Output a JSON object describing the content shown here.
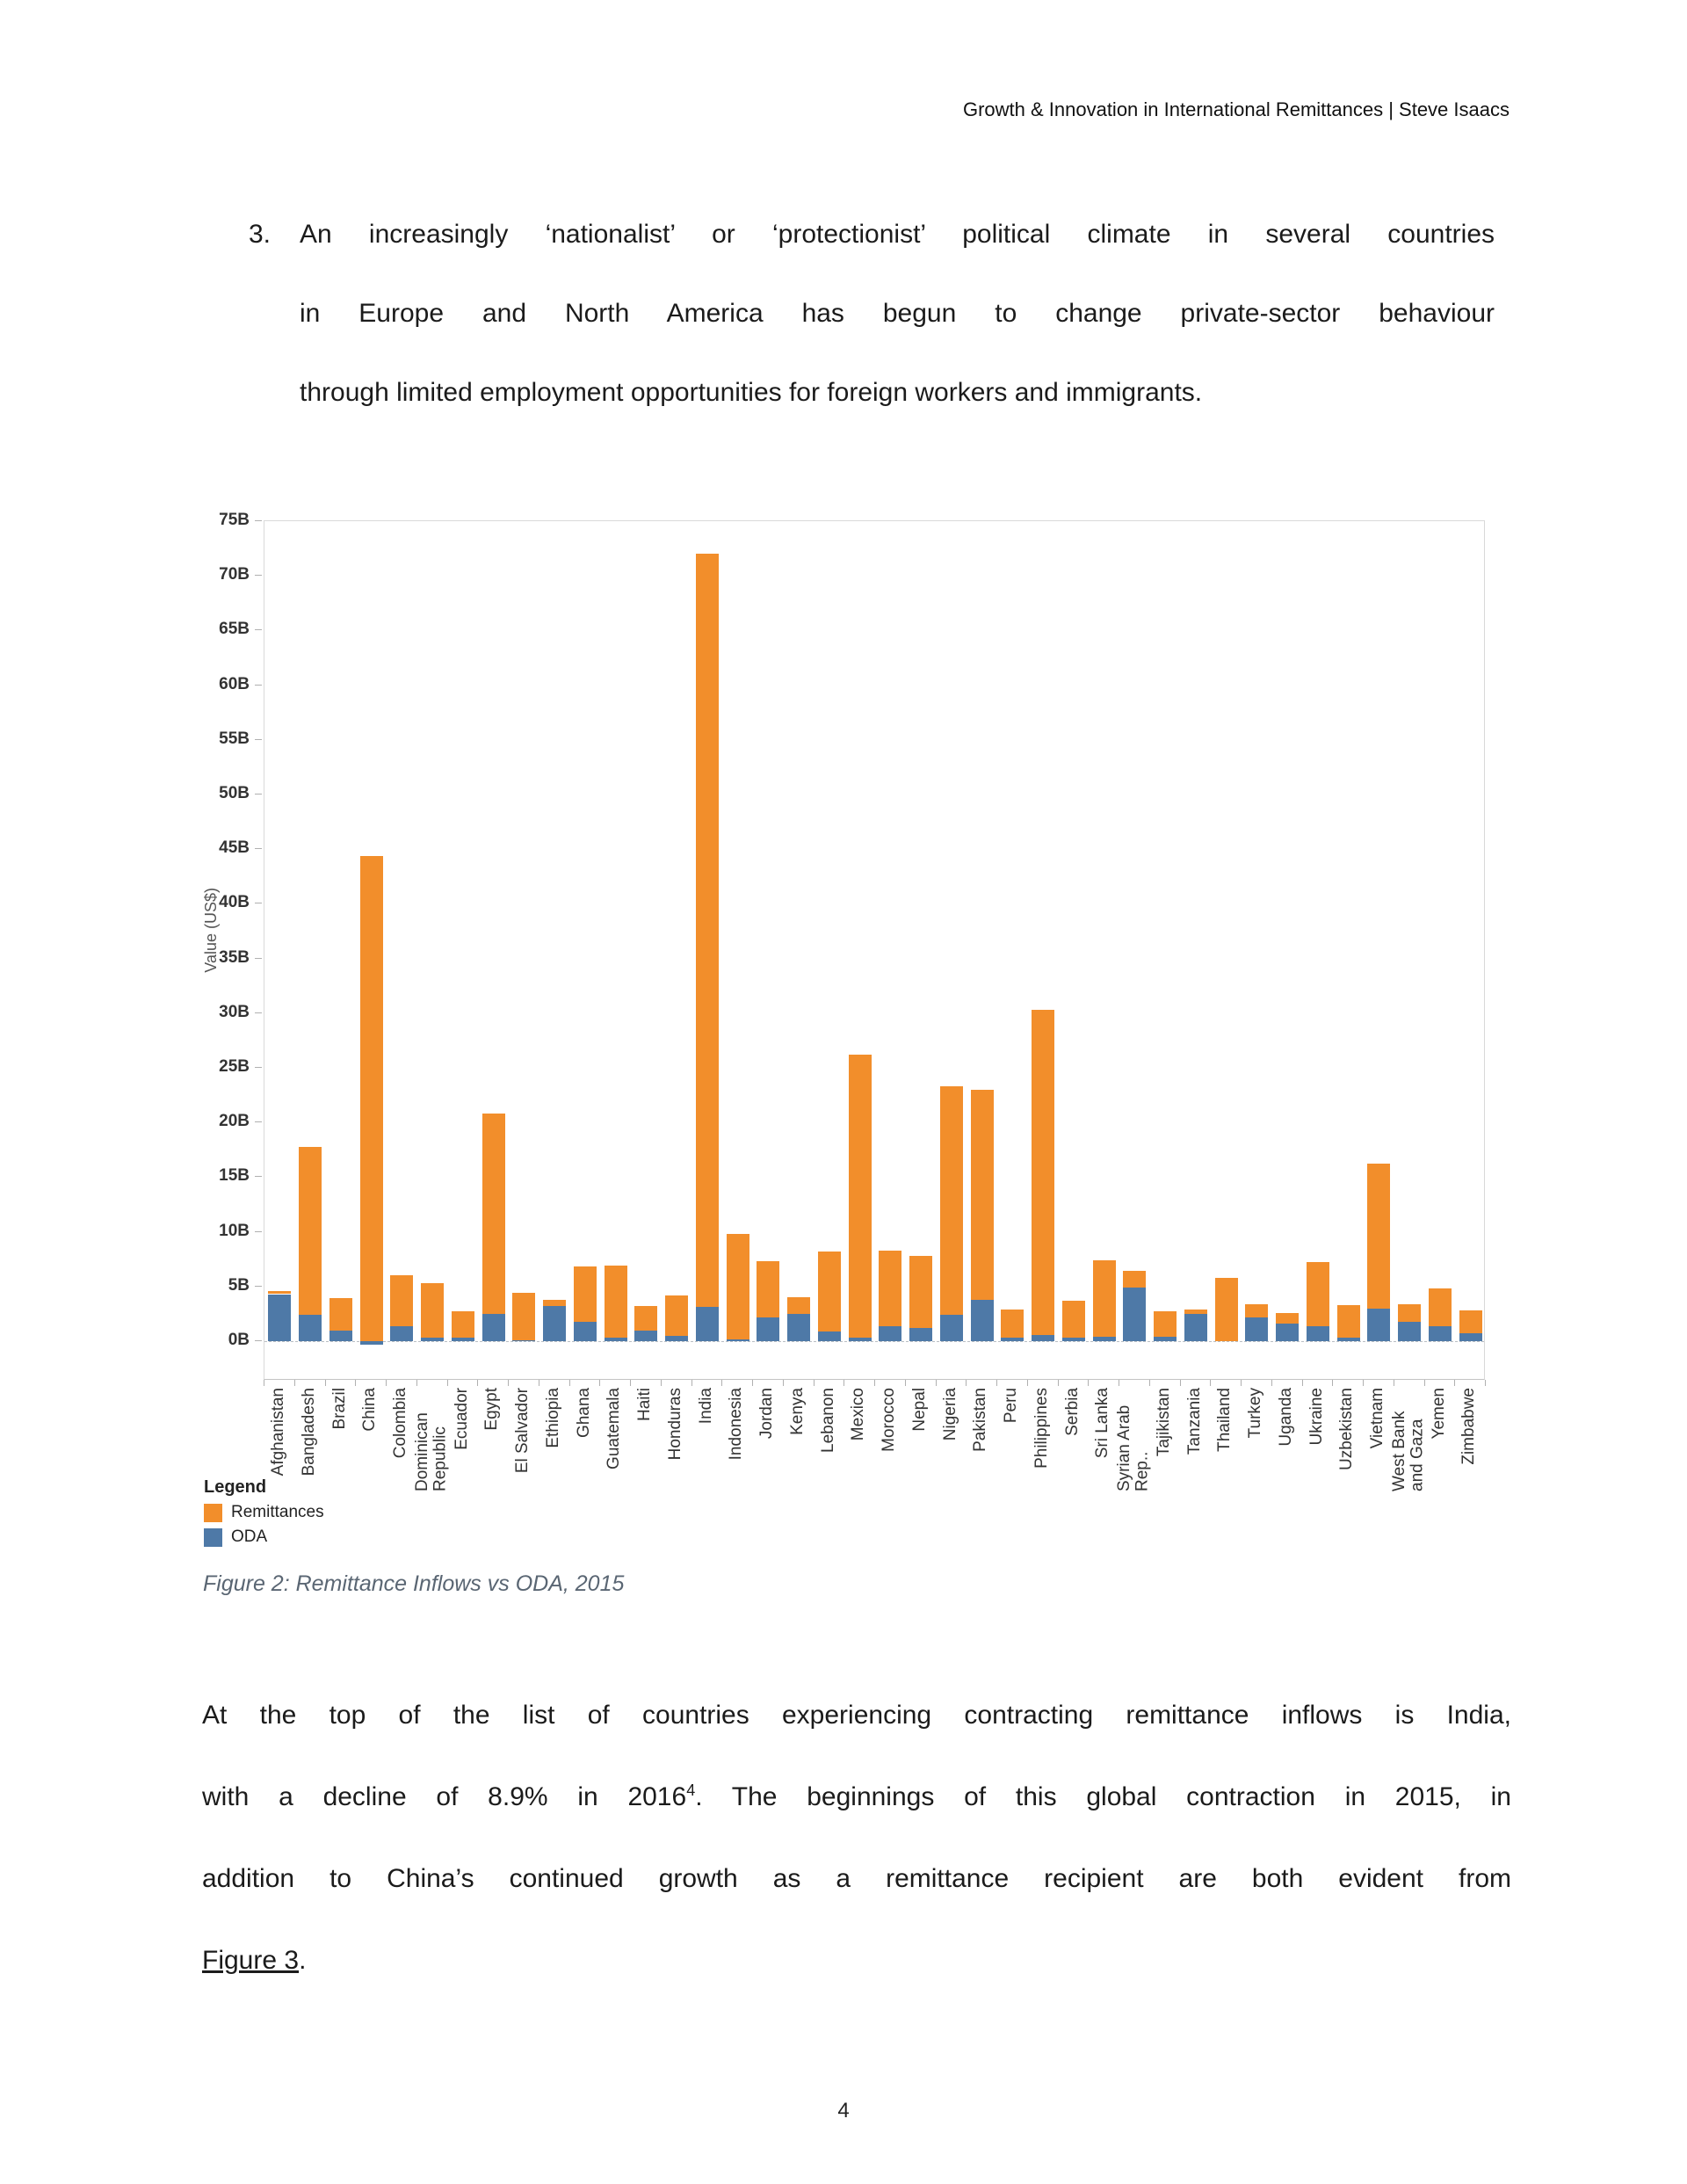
{
  "page": {
    "header": "Growth & Innovation in International Remittances | Steve Isaacs",
    "page_number": "4"
  },
  "list_item": {
    "number": "3.",
    "lines": [
      "An increasingly ‘nationalist’ or ‘protectionist’ political climate in several countries",
      "in Europe and North America has begun to change private-sector behaviour",
      "through limited employment opportunities for foreign workers and immigrants."
    ]
  },
  "figure": {
    "caption": "Figure 2: Remittance Inflows vs ODA, 2015",
    "legend_title": "Legend",
    "legend_items": [
      {
        "label": "Remittances",
        "color": "#F28E2B"
      },
      {
        "label": "ODA",
        "color": "#4E79A7"
      }
    ]
  },
  "chart_data": {
    "type": "bar",
    "stacked": true,
    "title": "",
    "xlabel": "",
    "ylabel": "Value (US$)",
    "units": "billions of US dollars",
    "ylim": [
      0,
      75
    ],
    "ytick_step": 5,
    "ytick_suffix": "B",
    "grid": false,
    "legend_position": "bottom-left",
    "categories": [
      "Afghanistan",
      "Bangladesh",
      "Brazil",
      "China",
      "Colombia",
      "Dominican Republic",
      "Ecuador",
      "Egypt",
      "El Salvador",
      "Ethiopia",
      "Ghana",
      "Guatemala",
      "Haiti",
      "Honduras",
      "India",
      "Indonesia",
      "Jordan",
      "Kenya",
      "Lebanon",
      "Mexico",
      "Morocco",
      "Nepal",
      "Nigeria",
      "Pakistan",
      "Peru",
      "Philippines",
      "Serbia",
      "Sri Lanka",
      "Syrian Arab Rep..",
      "Tajikistan",
      "Tanzania",
      "Thailand",
      "Turkey",
      "Uganda",
      "Ukraine",
      "Uzbekistan",
      "Vietnam",
      "West Bank and Gaza",
      "Yemen",
      "Zimbabwe"
    ],
    "series": [
      {
        "name": "Remittances",
        "color": "#F28E2B",
        "values": [
          0.3,
          15.4,
          2.9,
          44.4,
          4.6,
          5.0,
          2.4,
          18.3,
          4.3,
          0.6,
          5.0,
          6.6,
          2.2,
          3.7,
          68.9,
          9.6,
          5.1,
          1.5,
          7.3,
          25.9,
          6.9,
          6.6,
          20.9,
          19.2,
          2.6,
          29.7,
          3.4,
          7.0,
          1.5,
          2.3,
          0.4,
          5.8,
          1.2,
          1.0,
          5.8,
          3.0,
          13.2,
          1.6,
          3.4,
          2.1
        ]
      },
      {
        "name": "ODA",
        "color": "#4E79A7",
        "values": [
          4.3,
          2.4,
          1.0,
          -0.3,
          1.4,
          0.3,
          0.3,
          2.5,
          0.1,
          3.2,
          1.8,
          0.3,
          1.0,
          0.5,
          3.1,
          0.2,
          2.2,
          2.5,
          0.9,
          0.3,
          1.4,
          1.2,
          2.4,
          3.8,
          0.3,
          0.6,
          0.3,
          0.4,
          4.9,
          0.4,
          2.5,
          0.0,
          2.2,
          1.6,
          1.4,
          0.3,
          3.0,
          1.8,
          1.4,
          0.7
        ]
      }
    ]
  },
  "body": {
    "line1": "At the top of the list of countries experiencing contracting remittance inflows is India,",
    "line2_before": "with a decline of 8.9% in 2016",
    "line2_sup": "4",
    "line2_after": ". The beginnings of this global contraction in 2015, in",
    "line3": "addition to China’s continued growth as a remittance recipient are both evident from",
    "line4_link": "Figure 3",
    "line4_end": "."
  }
}
